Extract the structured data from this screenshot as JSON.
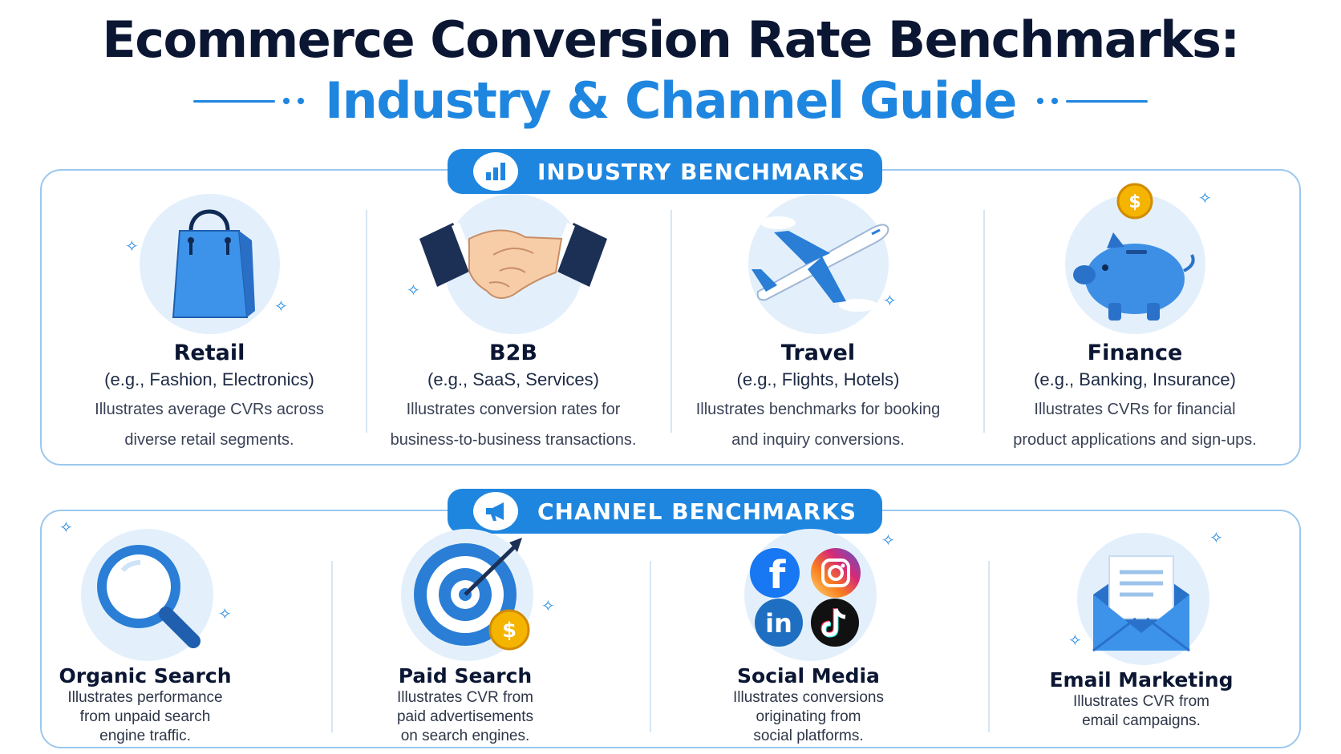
{
  "header": {
    "title_line1": "Ecommerce Conversion Rate Benchmarks:",
    "title_line2": "Industry & Channel Guide"
  },
  "colors": {
    "accent": "#1f86e0",
    "navy": "#0b1633",
    "panel_border": "#9cc8ef",
    "icon_bg": "#e3f0fc"
  },
  "industry": {
    "section_label": "INDUSTRY BENCHMARKS",
    "section_icon": "bar-chart-icon",
    "cards": [
      {
        "icon": "shopping-bag-icon",
        "name": "Retail",
        "examples": "(e.g., Fashion, Electronics)",
        "desc_line1": "Illustrates average CVRs across",
        "desc_line2": "diverse retail segments."
      },
      {
        "icon": "handshake-icon",
        "name": "B2B",
        "examples": "(e.g., SaaS, Services)",
        "desc_line1": "Illustrates conversion rates for",
        "desc_line2": "business-to-business transactions."
      },
      {
        "icon": "airplane-icon",
        "name": "Travel",
        "examples": "(e.g., Flights, Hotels)",
        "desc_line1": "Illustrates benchmarks for booking",
        "desc_line2": "and inquiry conversions."
      },
      {
        "icon": "piggy-bank-icon",
        "name": "Finance",
        "examples": "(e.g., Banking, Insurance)",
        "desc_line1": "Illustrates CVRs for financial",
        "desc_line2": "product applications and sign-ups."
      }
    ]
  },
  "channel": {
    "section_label": "CHANNEL BENCHMARKS",
    "section_icon": "megaphone-icon",
    "cards": [
      {
        "icon": "magnifying-glass-icon",
        "name": "Organic Search",
        "desc_line1": "Illustrates performance",
        "desc_line2": "from unpaid search",
        "desc_line3": "engine traffic."
      },
      {
        "icon": "target-icon",
        "name": "Paid Search",
        "desc_line1": "Illustrates CVR from",
        "desc_line2": "paid advertisements",
        "desc_line3": "on search engines."
      },
      {
        "icon": "social-icons",
        "name": "Social Media",
        "desc_line1": "Illustrates conversions",
        "desc_line2": "originating from",
        "desc_line3": "social platforms."
      },
      {
        "icon": "envelope-icon",
        "name": "Email Marketing",
        "desc_line1": "Illustrates CVR from",
        "desc_line2": "email campaigns.",
        "desc_line3": ""
      }
    ],
    "social_glyphs": {
      "facebook": "f",
      "linkedin": "in"
    }
  },
  "coin_symbol": "$"
}
